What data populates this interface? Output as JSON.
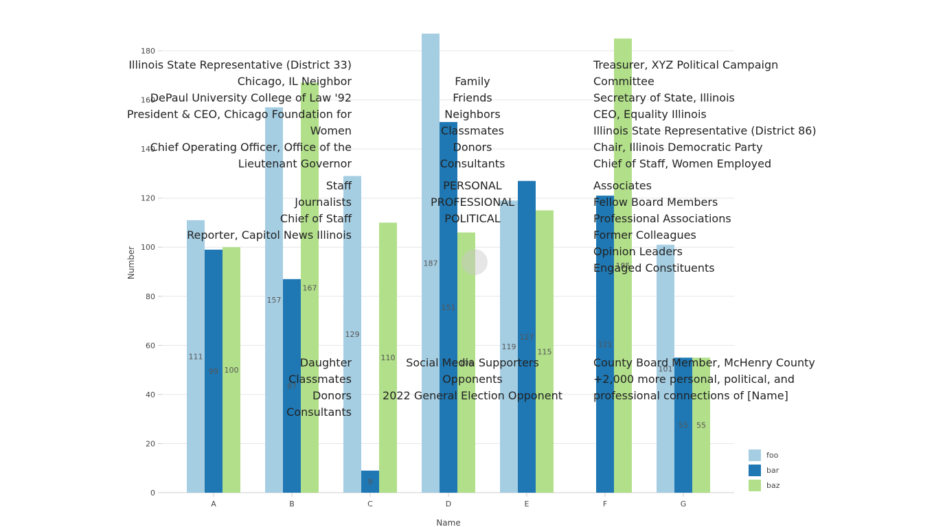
{
  "chart_data": {
    "type": "bar",
    "categories": [
      "A",
      "B",
      "C",
      "D",
      "E",
      "F",
      "G"
    ],
    "series": [
      {
        "name": "foo",
        "color": "#a6cee3",
        "values": [
          111,
          157,
          129,
          187,
          119,
          null,
          101
        ]
      },
      {
        "name": "bar",
        "color": "#1f78b4",
        "values": [
          99,
          87,
          9,
          151,
          127,
          121,
          55
        ]
      },
      {
        "name": "baz",
        "color": "#b2df8a",
        "values": [
          100,
          167,
          110,
          106,
          115,
          185,
          55
        ]
      }
    ],
    "xlabel": "Name",
    "ylabel": "Number",
    "ylim": [
      0,
      187
    ],
    "yticks": [
      0,
      20,
      40,
      60,
      80,
      100,
      120,
      140,
      160,
      180
    ],
    "grid": "horizontal",
    "legend_position": "bottom-right"
  },
  "overlay": {
    "top_left": [
      [
        "Illinois State Representative (District 33)",
        "Chicago, IL Neighbor",
        "DePaul University College of Law '92",
        "President & CEO, Chicago Foundation for\nWomen",
        "Chief Operating Officer, Office of the\nLieutenant Governor"
      ],
      [
        "Staff",
        "Journalists",
        "Chief of Staff",
        "Reporter, Capitol News Illinois"
      ]
    ],
    "top_center": [
      [
        "Family",
        "Friends",
        "Neighbors",
        "Classmates",
        "Donors",
        "Consultants"
      ],
      [
        "PERSONAL",
        "PROFESSIONAL",
        "POLITICAL"
      ]
    ],
    "top_right": [
      [
        "Treasurer, XYZ Political Campaign\nCommittee",
        "Secretary of State, Illinois",
        "CEO, Equality Illinois",
        "Illinois State Representative (District 86)",
        "Chair, Illinois Democratic Party",
        "Chief of Staff, Women Employed"
      ],
      [
        "Associates",
        "Fellow Board Members",
        "Professional Associations",
        "Former Colleagues",
        "Opinion Leaders",
        "Engaged Constituents"
      ]
    ],
    "bottom_left": [
      "Daughter",
      "Classmates",
      "Donors",
      "Consultants"
    ],
    "bottom_center": [
      "Social Media Supporters",
      "Opponents",
      "2022 General Election Opponent"
    ],
    "bottom_right": [
      "County Board Member, McHenry County",
      "+2,000 more personal, political, and\nprofessional connections of [Name]"
    ]
  }
}
